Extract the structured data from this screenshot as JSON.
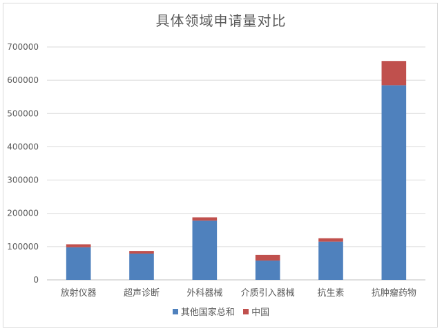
{
  "chart_data": {
    "type": "bar",
    "stacked": true,
    "title": "具体领域申请量对比",
    "categories": [
      "放射仪器",
      "超声诊断",
      "外科器械",
      "介质引入器械",
      "抗生素",
      "抗肿瘤药物"
    ],
    "series": [
      {
        "name": "其他国家总和",
        "color": "#4f81bd",
        "values": [
          98000,
          79000,
          178000,
          58000,
          115000,
          585000
        ]
      },
      {
        "name": "中国",
        "color": "#c0504d",
        "values": [
          9000,
          8000,
          10000,
          17000,
          10000,
          73000
        ]
      }
    ],
    "ylim": [
      0,
      700000
    ],
    "yticks": [
      "0",
      "100000",
      "200000",
      "300000",
      "400000",
      "500000",
      "600000",
      "700000"
    ],
    "grid": true,
    "legend": "bottom"
  }
}
